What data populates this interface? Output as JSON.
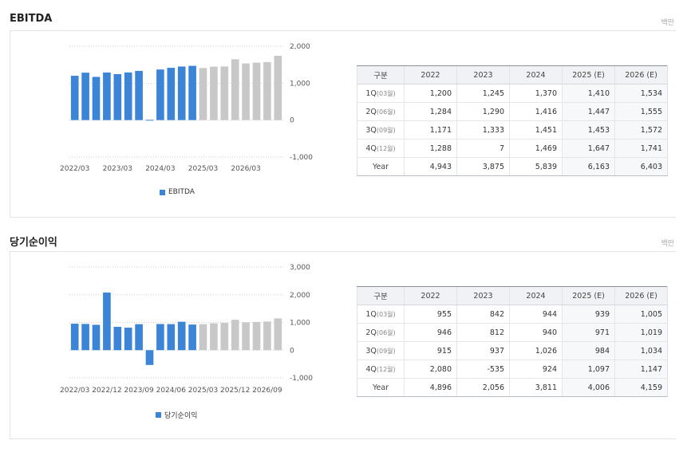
{
  "sections": [
    {
      "title": "EBITDA",
      "unit": "백만",
      "legend": "EBITDA",
      "table": {
        "headers": [
          "구분",
          "2022",
          "2023",
          "2024",
          "2025 (E)",
          "2026 (E)"
        ],
        "rows": [
          {
            "label": "1Q",
            "sub": "(03월)",
            "values": [
              "1,200",
              "1,245",
              "1,370",
              "1,410",
              "1,534"
            ]
          },
          {
            "label": "2Q",
            "sub": "(06월)",
            "values": [
              "1,284",
              "1,290",
              "1,416",
              "1,447",
              "1,555"
            ]
          },
          {
            "label": "3Q",
            "sub": "(09월)",
            "values": [
              "1,171",
              "1,333",
              "1,451",
              "1,453",
              "1,572"
            ]
          },
          {
            "label": "4Q",
            "sub": "(12월)",
            "values": [
              "1,288",
              "7",
              "1,469",
              "1,647",
              "1,741"
            ]
          },
          {
            "label": "Year",
            "sub": "",
            "values": [
              "4,943",
              "3,875",
              "5,839",
              "6,163",
              "6,403"
            ]
          }
        ]
      }
    },
    {
      "title": "당기순이익",
      "unit": "백만",
      "legend": "당기순이익",
      "table": {
        "headers": [
          "구분",
          "2022",
          "2023",
          "2024",
          "2025 (E)",
          "2026 (E)"
        ],
        "rows": [
          {
            "label": "1Q",
            "sub": "(03월)",
            "values": [
              "955",
              "842",
              "944",
              "939",
              "1,005"
            ]
          },
          {
            "label": "2Q",
            "sub": "(06월)",
            "values": [
              "946",
              "812",
              "940",
              "971",
              "1,019"
            ]
          },
          {
            "label": "3Q",
            "sub": "(09월)",
            "values": [
              "915",
              "937",
              "1,026",
              "984",
              "1,034"
            ]
          },
          {
            "label": "4Q",
            "sub": "(12월)",
            "values": [
              "2,080",
              "-535",
              "924",
              "1,097",
              "1,147"
            ]
          },
          {
            "label": "Year",
            "sub": "",
            "values": [
              "4,896",
              "2,056",
              "3,811",
              "4,006",
              "4,159"
            ]
          }
        ]
      }
    }
  ],
  "chart_data": [
    {
      "type": "bar",
      "categories": [
        "2022/03",
        "2022/06",
        "2022/09",
        "2022/12",
        "2023/03",
        "2023/06",
        "2023/09",
        "2023/12",
        "2024/03",
        "2024/06",
        "2024/09",
        "2024/12",
        "2025/03",
        "2025/06",
        "2025/09",
        "2025/12",
        "2026/03",
        "2026/06",
        "2026/09",
        "2026/12"
      ],
      "series": [
        {
          "name": "EBITDA",
          "values": [
            1200,
            1284,
            1171,
            1288,
            1245,
            1290,
            1333,
            7,
            1370,
            1416,
            1451,
            1469,
            1410,
            1447,
            1453,
            1647,
            1534,
            1555,
            1572,
            1741
          ]
        }
      ],
      "estimate_from_index": 12,
      "actual_color": "#3c85d6",
      "estimate_color": "#c8c8c8",
      "xtick_labels": [
        "2022/03",
        "2023/03",
        "2024/03",
        "2025/03",
        "2026/03"
      ],
      "xtick_indices": [
        0,
        4,
        8,
        12,
        16
      ],
      "yticks": [
        -1000,
        0,
        1000,
        2000
      ],
      "ytick_labels": [
        "-1,000",
        "0",
        "1,000",
        "2,000"
      ],
      "ylim": [
        -1000,
        2000
      ],
      "grid": true,
      "legend_position": "bottom"
    },
    {
      "type": "bar",
      "categories": [
        "2022/03",
        "2022/06",
        "2022/09",
        "2022/12",
        "2023/03",
        "2023/06",
        "2023/09",
        "2023/12",
        "2024/03",
        "2024/06",
        "2024/09",
        "2024/12",
        "2025/03",
        "2025/06",
        "2025/09",
        "2025/12",
        "2026/03",
        "2026/06",
        "2026/09",
        "2026/12"
      ],
      "series": [
        {
          "name": "당기순이익",
          "values": [
            955,
            946,
            915,
            2080,
            842,
            812,
            937,
            -535,
            944,
            940,
            1026,
            924,
            939,
            971,
            984,
            1097,
            1005,
            1019,
            1034,
            1147
          ]
        }
      ],
      "estimate_from_index": 12,
      "actual_color": "#3c85d6",
      "estimate_color": "#c8c8c8",
      "xtick_labels": [
        "2022/03",
        "2022/12",
        "2023/09",
        "2024/06",
        "2025/03",
        "2025/12",
        "2026/09"
      ],
      "xtick_indices": [
        0,
        3,
        6,
        9,
        12,
        15,
        18
      ],
      "yticks": [
        -1000,
        0,
        1000,
        2000,
        3000
      ],
      "ytick_labels": [
        "-1,000",
        "0",
        "1,000",
        "2,000",
        "3,000"
      ],
      "ylim": [
        -1000,
        3000
      ],
      "grid": true,
      "legend_position": "bottom"
    }
  ]
}
